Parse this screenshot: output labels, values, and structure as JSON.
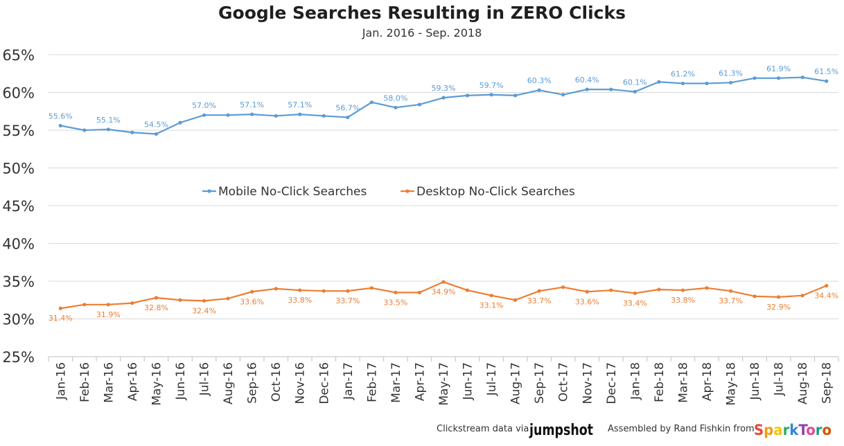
{
  "header": {
    "title": "Google Searches Resulting in ZERO Clicks",
    "subtitle": "Jan. 2016 - Sep. 2018"
  },
  "footer": {
    "clickstream_label": "Clickstream data via",
    "jumpshot_logo": "jumpshot",
    "assembled_label": "Assembled by Rand Fishkin from",
    "sparktoro_logo": "SparkToro"
  },
  "colors": {
    "mobile": "#5b9bd5",
    "desktop": "#ed7d31",
    "grid": "#d9d9d9"
  },
  "chart_data": {
    "type": "line",
    "title": "Google Searches Resulting in ZERO Clicks",
    "subtitle": "Jan. 2016 - Sep. 2018",
    "xlabel": "",
    "ylabel": "",
    "ylim": [
      25,
      65
    ],
    "yticks": [
      "25%",
      "30%",
      "35%",
      "40%",
      "45%",
      "50%",
      "55%",
      "60%",
      "65%"
    ],
    "grid": true,
    "legend_position": "center",
    "categories": [
      "Jan-16",
      "Feb-16",
      "Mar-16",
      "Apr-16",
      "May-16",
      "Jun-16",
      "Jul-16",
      "Aug-16",
      "Sep-16",
      "Oct-16",
      "Nov-16",
      "Dec-16",
      "Jan-17",
      "Feb-17",
      "Mar-17",
      "Apr-17",
      "May-17",
      "Jun-17",
      "Jul-17",
      "Aug-17",
      "Sep-17",
      "Oct-17",
      "Nov-17",
      "Dec-17",
      "Jan-18",
      "Feb-18",
      "Mar-18",
      "Apr-18",
      "May-18",
      "Jun-18",
      "Jul-18",
      "Aug-18",
      "Sep-18"
    ],
    "series": [
      {
        "name": "Mobile No-Click Searches",
        "color": "#5b9bd5",
        "values": [
          55.6,
          55.0,
          55.1,
          54.7,
          54.5,
          56.0,
          57.0,
          57.0,
          57.1,
          56.9,
          57.1,
          56.9,
          56.7,
          58.7,
          58.0,
          58.4,
          59.3,
          59.6,
          59.7,
          59.6,
          60.3,
          59.7,
          60.4,
          60.4,
          60.1,
          61.4,
          61.2,
          61.2,
          61.3,
          61.9,
          61.9,
          62.0,
          61.5
        ],
        "labels": [
          "55.6%",
          null,
          "55.1%",
          null,
          "54.5%",
          null,
          "57.0%",
          null,
          "57.1%",
          null,
          "57.1%",
          null,
          "56.7%",
          null,
          "58.0%",
          null,
          "59.3%",
          null,
          "59.7%",
          null,
          "60.3%",
          null,
          "60.4%",
          null,
          "60.1%",
          null,
          "61.2%",
          null,
          "61.3%",
          null,
          "61.9%",
          null,
          "61.5%"
        ]
      },
      {
        "name": "Desktop No-Click Searches",
        "color": "#ed7d31",
        "values": [
          31.4,
          31.9,
          31.9,
          32.1,
          32.8,
          32.5,
          32.4,
          32.7,
          33.6,
          34.0,
          33.8,
          33.7,
          33.7,
          34.1,
          33.5,
          33.5,
          34.9,
          33.8,
          33.1,
          32.5,
          33.7,
          34.2,
          33.6,
          33.8,
          33.4,
          33.9,
          33.8,
          34.1,
          33.7,
          33.0,
          32.9,
          33.1,
          34.4
        ],
        "labels": [
          "31.4%",
          null,
          "31.9%",
          null,
          "32.8%",
          null,
          "32.4%",
          null,
          "33.6%",
          null,
          "33.8%",
          null,
          "33.7%",
          null,
          "33.5%",
          null,
          "34.9%",
          null,
          "33.1%",
          null,
          "33.7%",
          null,
          "33.6%",
          null,
          "33.4%",
          null,
          "33.8%",
          null,
          "33.7%",
          null,
          "32.9%",
          null,
          "34.4%"
        ]
      }
    ]
  }
}
